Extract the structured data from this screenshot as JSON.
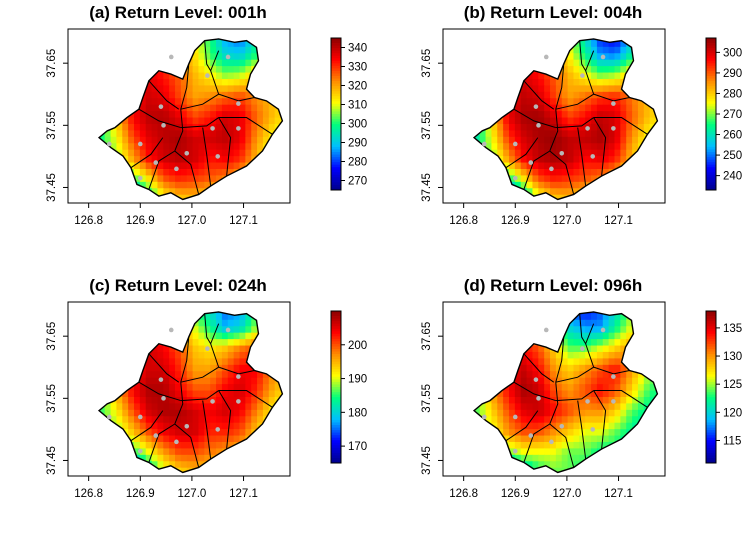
{
  "figure": {
    "chart_data": [
      {
        "type": "heatmap",
        "title": "(a) Return Level: 001h",
        "xlabel": "",
        "ylabel": "",
        "x_ticks": [
          "126.8",
          "126.9",
          "127.0",
          "127.1"
        ],
        "x_tick_values": [
          126.8,
          126.9,
          127.0,
          127.1
        ],
        "y_ticks": [
          "37.45",
          "37.55",
          "37.65"
        ],
        "y_tick_values": [
          37.45,
          37.55,
          37.65
        ],
        "xlim": [
          126.76,
          127.19
        ],
        "ylim": [
          37.425,
          37.705
        ],
        "colorbar": {
          "range": [
            265,
            345
          ],
          "ticks": [
            "270",
            "280",
            "290",
            "300",
            "310",
            "320",
            "330",
            "340"
          ],
          "tick_values": [
            270,
            280,
            290,
            300,
            310,
            320,
            330,
            340
          ],
          "colors": [
            "#00008b",
            "#0000ff",
            "#00bfff",
            "#00ff7f",
            "#ffff00",
            "#ff8c00",
            "#ff0000",
            "#8b0000"
          ]
        },
        "stations": [
          [
            126.96,
            37.66
          ],
          [
            127.03,
            37.63
          ],
          [
            127.07,
            37.66
          ],
          [
            126.94,
            37.58
          ],
          [
            127.09,
            37.585
          ],
          [
            126.84,
            37.52
          ],
          [
            126.9,
            37.52
          ],
          [
            126.945,
            37.55
          ],
          [
            127.04,
            37.545
          ],
          [
            127.09,
            37.545
          ],
          [
            126.93,
            37.49
          ],
          [
            126.99,
            37.505
          ],
          [
            127.05,
            37.5
          ],
          [
            126.9,
            37.465
          ],
          [
            126.97,
            37.48
          ]
        ],
        "value_grid": [
          [
            300,
            298,
            305,
            312,
            318,
            316,
            318,
            310,
            300,
            285,
            280,
            292,
            305,
            312
          ],
          [
            306,
            312,
            318,
            326,
            330,
            326,
            322,
            314,
            302,
            292,
            290,
            300,
            310,
            316
          ],
          [
            314,
            320,
            328,
            334,
            336,
            332,
            326,
            318,
            312,
            306,
            308,
            316,
            320,
            318
          ],
          [
            296,
            305,
            318,
            332,
            338,
            336,
            328,
            320,
            322,
            325,
            328,
            322,
            318,
            314
          ],
          [
            288,
            300,
            318,
            334,
            340,
            341,
            336,
            328,
            332,
            338,
            336,
            326,
            318,
            312
          ],
          [
            292,
            300,
            312,
            328,
            336,
            340,
            342,
            338,
            338,
            340,
            336,
            322,
            312,
            306
          ],
          [
            296,
            302,
            306,
            320,
            332,
            338,
            340,
            338,
            332,
            334,
            330,
            318,
            308,
            302
          ],
          [
            300,
            298,
            296,
            300,
            312,
            326,
            330,
            328,
            326,
            322,
            316,
            308,
            300,
            296
          ],
          [
            302,
            296,
            282,
            276,
            290,
            308,
            314,
            316,
            310,
            304,
            302,
            300,
            296,
            294
          ]
        ]
      },
      {
        "type": "heatmap",
        "title": "(b) Return Level: 004h",
        "xlabel": "",
        "ylabel": "",
        "x_ticks": [
          "126.8",
          "126.9",
          "127.0",
          "127.1"
        ],
        "x_tick_values": [
          126.8,
          126.9,
          127.0,
          127.1
        ],
        "y_ticks": [
          "37.45",
          "37.55",
          "37.65"
        ],
        "y_tick_values": [
          37.45,
          37.55,
          37.65
        ],
        "xlim": [
          126.76,
          127.19
        ],
        "ylim": [
          37.425,
          37.705
        ],
        "colorbar": {
          "range": [
            233,
            307
          ],
          "ticks": [
            "240",
            "250",
            "260",
            "270",
            "280",
            "290",
            "300"
          ],
          "tick_values": [
            240,
            250,
            260,
            270,
            280,
            290,
            300
          ],
          "colors": [
            "#00008b",
            "#0000ff",
            "#00bfff",
            "#00ff7f",
            "#ffff00",
            "#ff8c00",
            "#ff0000",
            "#8b0000"
          ]
        },
        "stations": [
          [
            126.96,
            37.66
          ],
          [
            127.03,
            37.63
          ],
          [
            127.07,
            37.66
          ],
          [
            126.94,
            37.58
          ],
          [
            127.09,
            37.585
          ],
          [
            126.84,
            37.52
          ],
          [
            126.9,
            37.52
          ],
          [
            126.945,
            37.55
          ],
          [
            127.04,
            37.545
          ],
          [
            127.09,
            37.545
          ],
          [
            126.93,
            37.49
          ],
          [
            126.99,
            37.505
          ],
          [
            127.05,
            37.5
          ],
          [
            126.9,
            37.465
          ],
          [
            126.97,
            37.48
          ]
        ],
        "value_grid": [
          [
            262,
            260,
            268,
            276,
            282,
            280,
            284,
            272,
            258,
            244,
            240,
            252,
            266,
            274
          ],
          [
            268,
            274,
            282,
            290,
            294,
            290,
            286,
            276,
            264,
            252,
            250,
            262,
            274,
            280
          ],
          [
            276,
            284,
            292,
            298,
            300,
            296,
            290,
            282,
            276,
            270,
            272,
            280,
            284,
            282
          ],
          [
            258,
            268,
            282,
            296,
            302,
            300,
            292,
            284,
            288,
            292,
            294,
            288,
            282,
            278
          ],
          [
            250,
            262,
            280,
            298,
            304,
            305,
            300,
            292,
            296,
            302,
            300,
            290,
            282,
            276
          ],
          [
            254,
            262,
            276,
            292,
            300,
            304,
            306,
            302,
            302,
            304,
            300,
            286,
            276,
            270
          ],
          [
            258,
            264,
            270,
            284,
            296,
            302,
            304,
            302,
            296,
            298,
            294,
            282,
            272,
            266
          ],
          [
            262,
            260,
            258,
            262,
            276,
            290,
            294,
            292,
            290,
            286,
            280,
            272,
            264,
            260
          ],
          [
            264,
            256,
            240,
            234,
            250,
            270,
            278,
            280,
            274,
            268,
            266,
            264,
            260,
            258
          ]
        ]
      },
      {
        "type": "heatmap",
        "title": "(c) Return Level: 024h",
        "xlabel": "",
        "ylabel": "",
        "x_ticks": [
          "126.8",
          "126.9",
          "127.0",
          "127.1"
        ],
        "x_tick_values": [
          126.8,
          126.9,
          127.0,
          127.1
        ],
        "y_ticks": [
          "37.45",
          "37.55",
          "37.65"
        ],
        "y_tick_values": [
          37.45,
          37.55,
          37.65
        ],
        "xlim": [
          126.76,
          127.19
        ],
        "ylim": [
          37.425,
          37.705
        ],
        "colorbar": {
          "range": [
            165,
            210
          ],
          "ticks": [
            "170",
            "180",
            "190",
            "200"
          ],
          "tick_values": [
            170,
            180,
            190,
            200
          ],
          "colors": [
            "#00008b",
            "#0000ff",
            "#00bfff",
            "#00ff7f",
            "#ffff00",
            "#ff8c00",
            "#ff0000",
            "#8b0000"
          ]
        },
        "stations": [
          [
            126.96,
            37.66
          ],
          [
            127.03,
            37.63
          ],
          [
            127.07,
            37.66
          ],
          [
            126.94,
            37.58
          ],
          [
            127.09,
            37.585
          ],
          [
            126.84,
            37.52
          ],
          [
            126.9,
            37.52
          ],
          [
            126.945,
            37.55
          ],
          [
            127.04,
            37.545
          ],
          [
            127.09,
            37.545
          ],
          [
            126.93,
            37.49
          ],
          [
            126.99,
            37.505
          ],
          [
            127.05,
            37.5
          ],
          [
            126.9,
            37.465
          ],
          [
            126.97,
            37.48
          ]
        ],
        "value_grid": [
          [
            186,
            184,
            188,
            190,
            192,
            190,
            188,
            184,
            180,
            174,
            176,
            184,
            190,
            192
          ],
          [
            190,
            192,
            196,
            200,
            202,
            200,
            196,
            190,
            184,
            178,
            180,
            188,
            194,
            196
          ],
          [
            194,
            198,
            202,
            204,
            206,
            204,
            200,
            194,
            192,
            194,
            198,
            200,
            198,
            196
          ],
          [
            184,
            188,
            196,
            202,
            206,
            206,
            202,
            196,
            196,
            200,
            204,
            204,
            198,
            194
          ],
          [
            180,
            186,
            196,
            204,
            208,
            208,
            204,
            200,
            200,
            204,
            206,
            202,
            196,
            192
          ],
          [
            182,
            186,
            192,
            200,
            206,
            208,
            208,
            206,
            204,
            206,
            204,
            198,
            192,
            188
          ],
          [
            184,
            186,
            188,
            194,
            200,
            204,
            206,
            206,
            202,
            202,
            200,
            194,
            190,
            188
          ],
          [
            186,
            184,
            182,
            184,
            190,
            196,
            200,
            200,
            198,
            196,
            194,
            190,
            188,
            186
          ],
          [
            188,
            182,
            172,
            168,
            178,
            188,
            192,
            194,
            192,
            190,
            188,
            188,
            186,
            186
          ]
        ]
      },
      {
        "type": "heatmap",
        "title": "(d) Return Level: 096h",
        "xlabel": "",
        "ylabel": "",
        "x_ticks": [
          "126.8",
          "126.9",
          "127.0",
          "127.1"
        ],
        "x_tick_values": [
          126.8,
          126.9,
          127.0,
          127.1
        ],
        "y_ticks": [
          "37.45",
          "37.55",
          "37.65"
        ],
        "y_tick_values": [
          37.45,
          37.55,
          37.65
        ],
        "xlim": [
          126.76,
          127.19
        ],
        "ylim": [
          37.425,
          37.705
        ],
        "colorbar": {
          "range": [
            111,
            138
          ],
          "ticks": [
            "115",
            "120",
            "125",
            "130",
            "135"
          ],
          "tick_values": [
            115,
            120,
            125,
            130,
            135
          ],
          "colors": [
            "#00008b",
            "#0000ff",
            "#00bfff",
            "#00ff7f",
            "#ffff00",
            "#ff8c00",
            "#ff0000",
            "#8b0000"
          ]
        },
        "stations": [
          [
            126.96,
            37.66
          ],
          [
            127.03,
            37.63
          ],
          [
            127.07,
            37.66
          ],
          [
            126.94,
            37.58
          ],
          [
            127.09,
            37.585
          ],
          [
            126.84,
            37.52
          ],
          [
            126.9,
            37.52
          ],
          [
            126.945,
            37.55
          ],
          [
            127.04,
            37.545
          ],
          [
            127.09,
            37.545
          ],
          [
            126.93,
            37.49
          ],
          [
            126.99,
            37.505
          ],
          [
            127.05,
            37.5
          ],
          [
            126.9,
            37.465
          ],
          [
            126.97,
            37.48
          ]
        ],
        "value_grid": [
          [
            124,
            122,
            124,
            126,
            128,
            124,
            120,
            116,
            114,
            116,
            120,
            124,
            126,
            126
          ],
          [
            126,
            128,
            130,
            132,
            132,
            128,
            124,
            120,
            118,
            118,
            122,
            126,
            128,
            128
          ],
          [
            128,
            130,
            132,
            134,
            134,
            132,
            128,
            124,
            124,
            126,
            128,
            130,
            128,
            126
          ],
          [
            124,
            126,
            130,
            134,
            136,
            134,
            130,
            128,
            130,
            132,
            134,
            130,
            126,
            124
          ],
          [
            120,
            124,
            130,
            134,
            137,
            136,
            132,
            130,
            132,
            134,
            132,
            128,
            124,
            122
          ],
          [
            122,
            124,
            128,
            132,
            135,
            136,
            134,
            132,
            130,
            130,
            128,
            124,
            122,
            120
          ],
          [
            124,
            124,
            126,
            130,
            132,
            132,
            130,
            128,
            126,
            126,
            124,
            122,
            120,
            120
          ],
          [
            126,
            124,
            122,
            124,
            126,
            126,
            126,
            124,
            124,
            122,
            122,
            120,
            120,
            120
          ],
          [
            126,
            122,
            116,
            114,
            118,
            122,
            124,
            124,
            122,
            122,
            120,
            120,
            120,
            120
          ]
        ]
      }
    ]
  }
}
